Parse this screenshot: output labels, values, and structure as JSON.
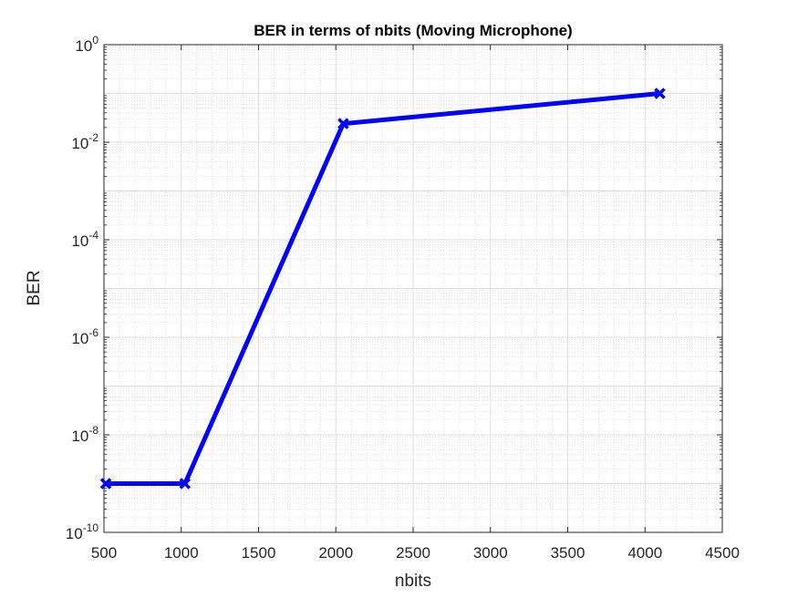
{
  "chart_data": {
    "type": "line",
    "title": "BER in terms of nbits (Moving Microphone)",
    "xlabel": "nbits",
    "ylabel": "BER",
    "xlim": [
      500,
      4500
    ],
    "ylim": [
      1e-10,
      1
    ],
    "yscale": "log",
    "grid": true,
    "x_ticks": [
      500,
      1000,
      1500,
      2000,
      2500,
      3000,
      3500,
      4000,
      4500
    ],
    "y_tick_exponents": [
      -10,
      -8,
      -6,
      -4,
      -2,
      0
    ],
    "y_tick_base": "10",
    "series": [
      {
        "color": "#0000ff",
        "marker": "x",
        "x": [
          512,
          1024,
          2048,
          4096
        ],
        "y": [
          1e-09,
          1e-09,
          0.024,
          0.1
        ]
      }
    ]
  }
}
